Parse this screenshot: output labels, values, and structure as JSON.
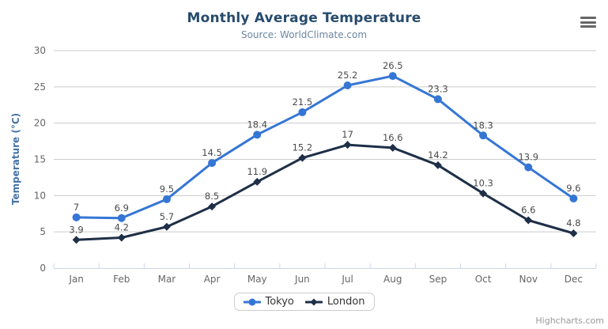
{
  "chart_data": {
    "type": "line",
    "title": "Monthly Average Temperature",
    "subtitle": "Source: WorldClimate.com",
    "categories": [
      "Jan",
      "Feb",
      "Mar",
      "Apr",
      "May",
      "Jun",
      "Jul",
      "Aug",
      "Sep",
      "Oct",
      "Nov",
      "Dec"
    ],
    "series": [
      {
        "name": "Tokyo",
        "color": "#3576d5",
        "marker": "circle",
        "values": [
          7,
          6.9,
          9.5,
          14.5,
          18.4,
          21.5,
          25.2,
          26.5,
          23.3,
          18.3,
          13.9,
          9.6
        ]
      },
      {
        "name": "London",
        "color": "#1e2f47",
        "marker": "diamond",
        "values": [
          3.9,
          4.2,
          5.7,
          8.5,
          11.9,
          15.2,
          17,
          16.6,
          14.2,
          10.3,
          6.6,
          4.8
        ]
      }
    ],
    "xlabel": "",
    "ylabel": "Temperature (°C)",
    "ylim": [
      0,
      30
    ],
    "ytick_interval": 5,
    "yticks": [
      0,
      5,
      10,
      15,
      20,
      25,
      30
    ],
    "grid": true,
    "data_labels": true,
    "legend_position": "bottom"
  },
  "menu": {
    "icon": "hamburger-menu-icon"
  },
  "credit": {
    "label": "Highcharts.com"
  },
  "colors": {
    "title": "#274b6d",
    "subtitle": "#6d86a0",
    "yaxis_title": "#4572a7",
    "tick_labels": "#666666",
    "grid": "#cccccc",
    "axis_line": "#ccd6eb",
    "data_label": "#4a4a4a",
    "menu_icon": "#666666",
    "legend_border": "#cccccc",
    "legend_text": "#333333",
    "credit": "#999999",
    "tokyo": "#3576d5",
    "london": "#1e2f47"
  }
}
